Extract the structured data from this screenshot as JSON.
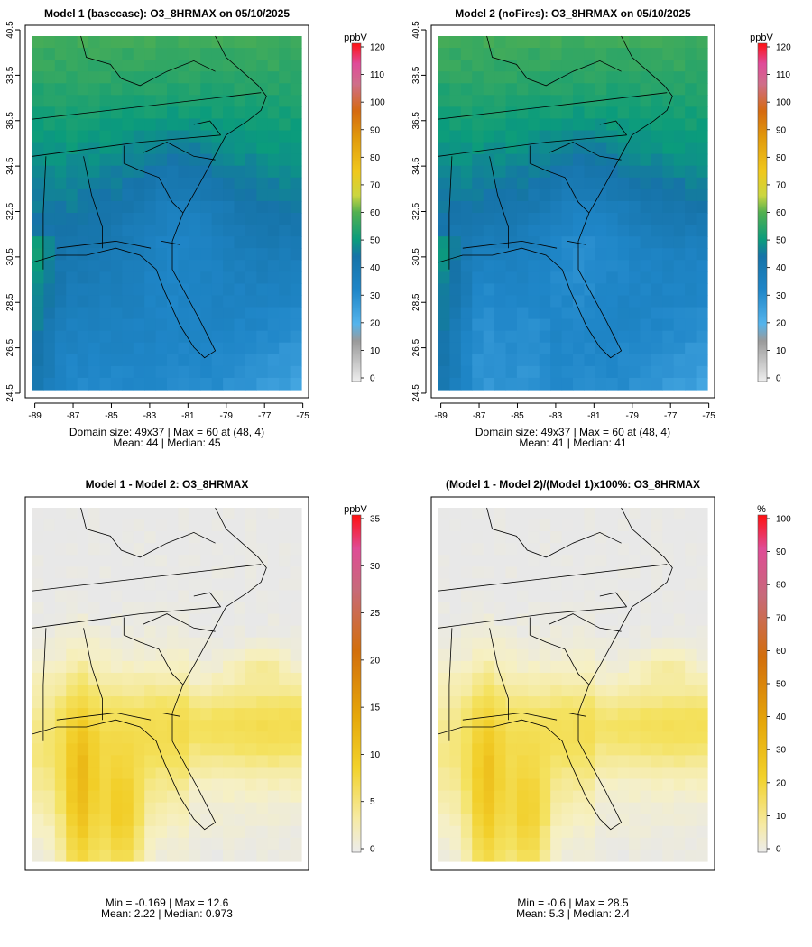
{
  "chart_data": [
    {
      "type": "heatmap",
      "title": "Model 1 (basecase): O3_8HRMAX on 05/10/2025",
      "colorbar_unit": "ppbV",
      "colorbar_ticks": [
        0,
        10,
        20,
        30,
        40,
        50,
        60,
        70,
        80,
        90,
        100,
        110,
        120
      ],
      "colorbar_max": 120,
      "x_ticks": [
        -89,
        -87,
        -85,
        -83,
        -81,
        -79,
        -77,
        -75
      ],
      "y_ticks": [
        24.5,
        26.5,
        28.5,
        30.5,
        32.5,
        34.5,
        36.5,
        38.5,
        40.5
      ],
      "xlim": [
        -89.5,
        -74.7
      ],
      "ylim": [
        24.3,
        40.7
      ],
      "stats_line1": "Domain size: 49x37 | Max = 60 at (48, 4)",
      "stats_line2": "Mean: 44 |  Median: 45",
      "domain": {
        "nx": 49,
        "ny": 37,
        "max": 60,
        "mean": 44,
        "median": 45
      }
    },
    {
      "type": "heatmap",
      "title": "Model 2 (noFires): O3_8HRMAX on 05/10/2025",
      "colorbar_unit": "ppbV",
      "colorbar_ticks": [
        0,
        10,
        20,
        30,
        40,
        50,
        60,
        70,
        80,
        90,
        100,
        110,
        120
      ],
      "colorbar_max": 120,
      "x_ticks": [
        -89,
        -87,
        -85,
        -83,
        -81,
        -79,
        -77,
        -75
      ],
      "y_ticks": [
        24.5,
        26.5,
        28.5,
        30.5,
        32.5,
        34.5,
        36.5,
        38.5,
        40.5
      ],
      "xlim": [
        -89.5,
        -74.7
      ],
      "ylim": [
        24.3,
        40.7
      ],
      "stats_line1": "Domain size: 49x37 | Max = 60 at (48, 4)",
      "stats_line2": "Mean: 41 |  Median: 41",
      "domain": {
        "nx": 49,
        "ny": 37,
        "max": 60,
        "mean": 41,
        "median": 41
      }
    },
    {
      "type": "heatmap",
      "title": "Model 1 - Model 2: O3_8HRMAX",
      "colorbar_unit": "ppbV",
      "colorbar_ticks": [
        0,
        5,
        10,
        15,
        20,
        25,
        30,
        35
      ],
      "colorbar_max": 35,
      "stats_line1": "Min = -0.169 | Max = 12.6",
      "stats_line2": "Mean: 2.22 |  Median: 0.973",
      "stats": {
        "min": -0.169,
        "max": 12.6,
        "mean": 2.22,
        "median": 0.973
      }
    },
    {
      "type": "heatmap",
      "title": "(Model 1 - Model 2)/(Model 1)x100%: O3_8HRMAX",
      "colorbar_unit": "%",
      "colorbar_ticks": [
        0,
        10,
        20,
        30,
        40,
        50,
        60,
        70,
        80,
        90,
        100
      ],
      "colorbar_max": 100,
      "stats_line1": "Min = -0.6 | Max = 28.5",
      "stats_line2": "Mean: 5.3 |  Median: 2.4",
      "stats": {
        "min": -0.6,
        "max": 28.5,
        "mean": 5.3,
        "median": 2.4
      }
    }
  ]
}
